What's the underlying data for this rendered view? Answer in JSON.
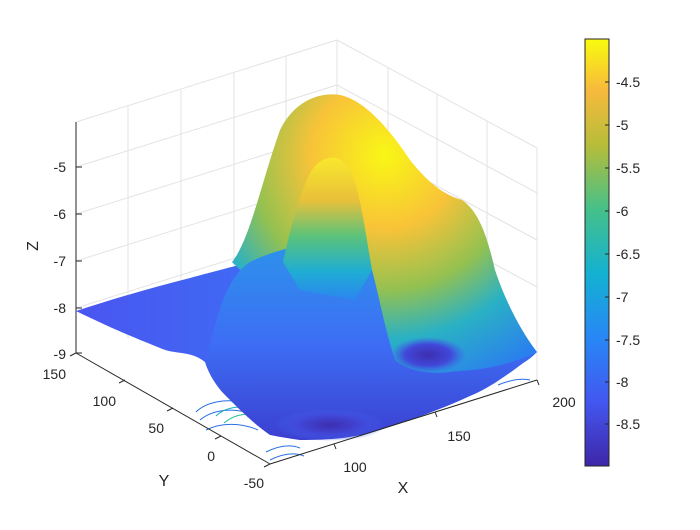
{
  "chart_data": {
    "type": "surface",
    "title": "",
    "xlabel": "X",
    "ylabel": "Y",
    "zlabel": "Z",
    "xlim": [
      60,
      220
    ],
    "ylim": [
      -50,
      150
    ],
    "zlim": [
      -9,
      -4
    ],
    "x_ticks": [
      "100",
      "150",
      "200"
    ],
    "y_ticks": [
      "-50",
      "0",
      "50",
      "100",
      "150"
    ],
    "z_ticks": [
      "-9",
      "-8",
      "-7",
      "-6",
      "-5"
    ],
    "colormap": "parula",
    "colorbar": {
      "range": [
        -8.95,
        -4.0
      ],
      "ticks": [
        "-4.5",
        "-5",
        "-5.5",
        "-6",
        "-6.5",
        "-7",
        "-7.5",
        "-8",
        "-8.5"
      ]
    },
    "grid": true,
    "peaks": [
      {
        "x": 100,
        "y": 120,
        "z": -4.1
      },
      {
        "x": 110,
        "y": 60,
        "z": -4.8
      }
    ],
    "troughs": [
      {
        "x": 165,
        "y": 20,
        "z": -8.8
      },
      {
        "x": 150,
        "y": -40,
        "z": -8.9
      }
    ],
    "contours_below": true
  }
}
